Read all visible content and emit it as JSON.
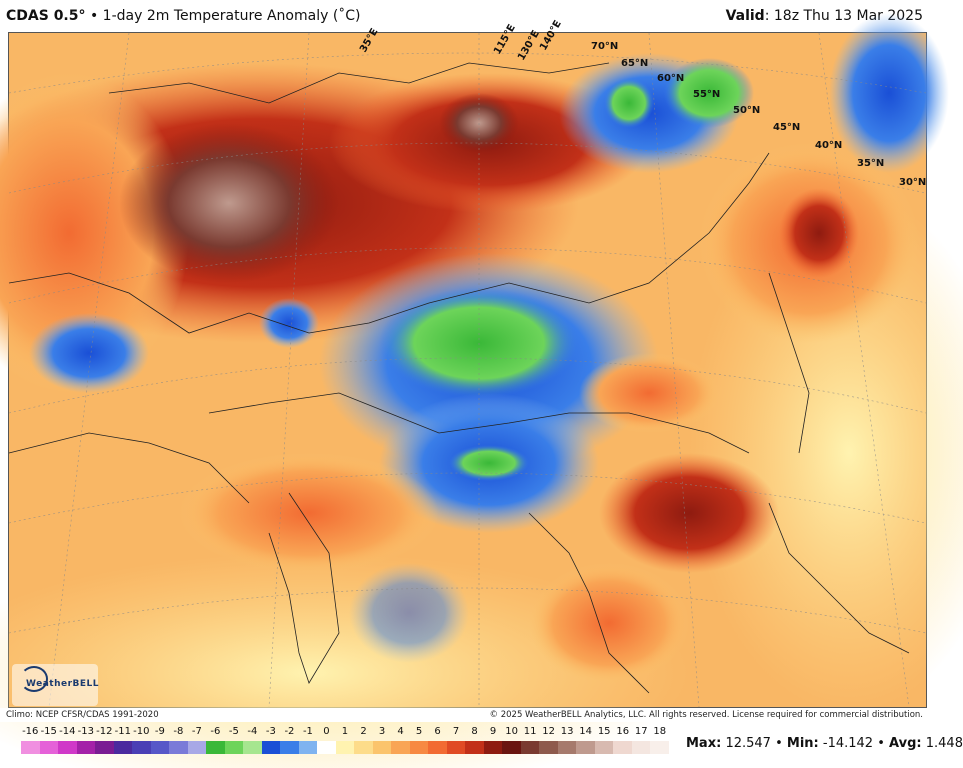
{
  "header": {
    "model": "CDAS 0.5°",
    "separator": "•",
    "product": "1-day 2m Temperature Anomaly (˚C)",
    "valid_label": "Valid",
    "valid_time": "18z Thu 13 Mar 2025"
  },
  "map": {
    "lat_labels": [
      "70°N",
      "65°N",
      "60°N",
      "55°N",
      "50°N",
      "45°N",
      "40°N",
      "35°N",
      "30°N"
    ],
    "lon_labels": [
      "35°E",
      "115°E",
      "130°E",
      "140°E"
    ],
    "logo_text": "WeatherBELL"
  },
  "footer": {
    "climo": "Climo: NCEP CFSR/CDAS 1991-2020",
    "copyright": "© 2025 WeatherBELL Analytics, LLC. All rights reserved. License required for commercial distribution."
  },
  "colorbar": {
    "labels": [
      "-16",
      "-15",
      "-14",
      "-13",
      "-12",
      "-11",
      "-10",
      "-9",
      "-8",
      "-7",
      "-6",
      "-5",
      "-4",
      "-3",
      "-2",
      "-1",
      "0",
      "1",
      "2",
      "3",
      "4",
      "5",
      "6",
      "7",
      "8",
      "9",
      "10",
      "11",
      "12",
      "13",
      "14",
      "15",
      "16",
      "17",
      "18"
    ],
    "colors": [
      "#f08fe0",
      "#e561d8",
      "#d038c8",
      "#a421a8",
      "#7a1c93",
      "#4b2a9e",
      "#4a3fb5",
      "#5757c8",
      "#7a7ad8",
      "#a8a8e6",
      "#3ab838",
      "#6dd45a",
      "#a6e68f",
      "#1a4fd6",
      "#3a7ee8",
      "#7fb3f0",
      "#ffffff",
      "#fff3b0",
      "#fddc8a",
      "#fbc46c",
      "#f9a555",
      "#f78942",
      "#f26b32",
      "#e04b24",
      "#c23018",
      "#8e1b10",
      "#6a1510",
      "#7a3a30",
      "#8e5a4c",
      "#a67a6c",
      "#bf9a8e",
      "#d8bab0",
      "#efd8d0",
      "#f4e6e0",
      "#f8efea"
    ]
  },
  "stats": {
    "max_label": "Max:",
    "max": "12.547",
    "min_label": "Min:",
    "min": "-14.142",
    "avg_label": "Avg:",
    "avg": "1.448",
    "sep": "•"
  }
}
